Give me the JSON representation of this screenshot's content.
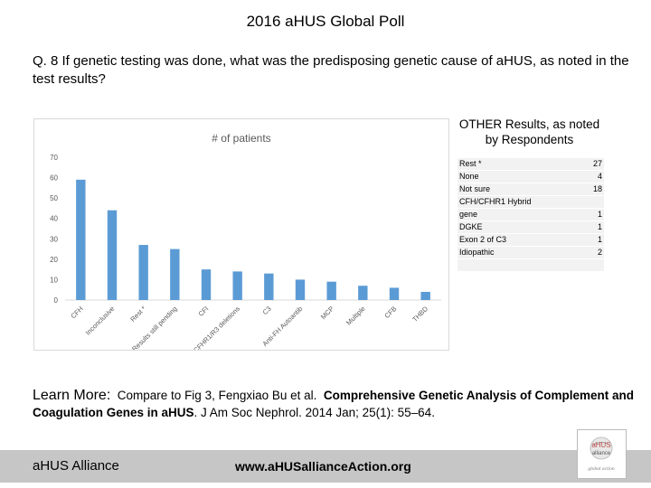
{
  "slide_title": "2016 aHUS Global Poll",
  "question": "Q. 8   If genetic testing was done, what was the predisposing genetic cause of aHUS, as noted in the test results?",
  "chart_data": {
    "type": "bar",
    "title": "# of patients",
    "categories": [
      "CFH",
      "Inconclusive",
      "Rest *",
      "Results still pending",
      "CFI",
      "CFHR1/R3 deletions",
      "C3",
      "Anti-FH Autoantib",
      "MCP",
      "Multiple",
      "CFB",
      "THBD"
    ],
    "values": [
      59,
      44,
      27,
      25,
      15,
      14,
      13,
      10,
      9,
      7,
      6,
      4
    ],
    "ylim": [
      0,
      70
    ],
    "yticks": [
      0,
      10,
      20,
      30,
      40,
      50,
      60,
      70
    ],
    "xlabel": "",
    "ylabel": "",
    "grid": false,
    "bar_color": "#5b9bd5"
  },
  "other_results": {
    "heading": "OTHER Results, as noted by Respondents",
    "rows": [
      {
        "label": "Rest *",
        "value": "27"
      },
      {
        "label": "None",
        "value": "4"
      },
      {
        "label": "Not sure",
        "value": "18"
      },
      {
        "label": "CFH/CFHR1 Hybrid",
        "value": ""
      },
      {
        "label": "gene",
        "value": "1"
      },
      {
        "label": "DGKE",
        "value": "1"
      },
      {
        "label": "Exon 2 of C3",
        "value": "1"
      },
      {
        "label": "Idiopathic",
        "value": "2"
      }
    ]
  },
  "learn_more": {
    "lead": "Learn More:",
    "text1": "Compare to Fig 3, Fengxiao Bu et al.",
    "title": "Comprehensive Genetic Analysis of Complement and Coagulation Genes in aHUS",
    "text2": ".  J Am Soc Nephrol. 2014 Jan; 25(1): 55–64."
  },
  "footer": {
    "org": "aHUS Alliance",
    "url": "www.aHUSallianceAction.org"
  },
  "logo": {
    "line1": "aHUS",
    "line2": "alliance",
    "line3": "global action"
  }
}
